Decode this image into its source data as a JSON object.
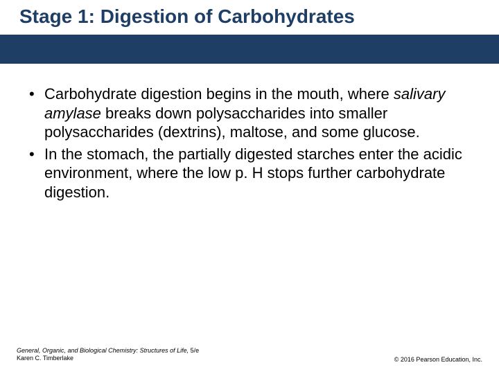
{
  "colors": {
    "title_color": "#1f3e66",
    "stripe_color": "#1f3e66",
    "body_text": "#000000",
    "background": "#ffffff"
  },
  "title": "Stage 1: Digestion of Carbohydrates",
  "bullets": [
    {
      "pre": "Carbohydrate digestion begins in the mouth, where ",
      "italic": "salivary amylase",
      "post": " breaks down polysaccharides into smaller polysaccharides (dextrins), maltose, and some glucose."
    },
    {
      "pre": "In the stomach, the partially digested starches enter the acidic environment, where the low p. H stops further carbohydrate digestion.",
      "italic": "",
      "post": ""
    }
  ],
  "footer": {
    "book_title": "General, Organic, and Biological Chemistry: Structures of Life, ",
    "edition": "5/e",
    "author": "Karen C. Timberlake",
    "copyright": "© 2016 Pearson Education, Inc."
  },
  "typography": {
    "title_fontsize": 28,
    "body_fontsize": 22,
    "footer_fontsize": 9
  }
}
